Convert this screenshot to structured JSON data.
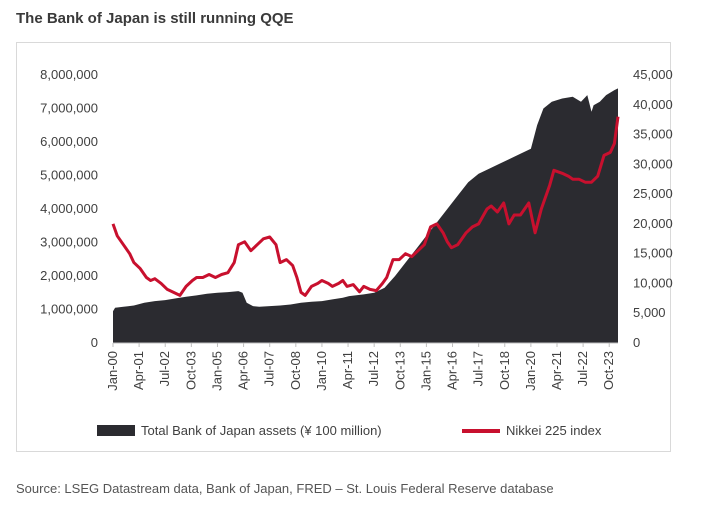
{
  "title": "The Bank of Japan is still running QQE",
  "source": "Source: LSEG Datastream data, Bank of Japan, FRED – St. Louis Federal Reserve database",
  "colors": {
    "assets": "#2b2b30",
    "nikkei": "#c8102e",
    "grid": "#d9d9d9"
  },
  "chart_data": {
    "type": "area",
    "x_range": [
      2000.0,
      2024.17
    ],
    "x_tick_labels": [
      "Jan-00",
      "Apr-01",
      "Jul-02",
      "Oct-03",
      "Jan-05",
      "Apr-06",
      "Jul-07",
      "Oct-08",
      "Jan-10",
      "Apr-11",
      "Jul-12",
      "Oct-13",
      "Jan-15",
      "Apr-16",
      "Jul-17",
      "Oct-18",
      "Jan-20",
      "Apr-21",
      "Jul-22",
      "Oct-23"
    ],
    "x_tick_values": [
      2000.0,
      2001.25,
      2002.5,
      2003.75,
      2005.0,
      2006.25,
      2007.5,
      2008.75,
      2010.0,
      2011.25,
      2012.5,
      2013.75,
      2015.0,
      2016.25,
      2017.5,
      2018.75,
      2020.0,
      2021.25,
      2022.5,
      2023.75
    ],
    "y_left": {
      "range": [
        0,
        8000000
      ],
      "tick_values": [
        0,
        1000000,
        2000000,
        3000000,
        4000000,
        5000000,
        6000000,
        7000000,
        8000000
      ],
      "tick_labels": [
        "0",
        "1,000,000",
        "2,000,000",
        "3,000,000",
        "4,000,000",
        "5,000,000",
        "6,000,000",
        "7,000,000",
        "8,000,000"
      ]
    },
    "y_right": {
      "range": [
        0,
        45000
      ],
      "tick_values": [
        0,
        5000,
        10000,
        15000,
        20000,
        25000,
        30000,
        35000,
        40000,
        45000
      ],
      "tick_labels": [
        "0",
        "5,000",
        "10,000",
        "15,000",
        "20,000",
        "25,000",
        "30,000",
        "35,000",
        "40,000",
        "45,000"
      ]
    },
    "grid": false,
    "legend_position": "bottom",
    "series": [
      {
        "name": "Total Bank of Japan assets (¥ 100 million)",
        "type": "area",
        "axis": "left",
        "x": [
          2000.0,
          2000.1,
          2000.5,
          2001.0,
          2001.5,
          2002.0,
          2002.5,
          2003.0,
          2003.5,
          2004.0,
          2004.5,
          2005.0,
          2005.5,
          2006.0,
          2006.2,
          2006.4,
          2006.7,
          2007.0,
          2007.5,
          2008.0,
          2008.5,
          2009.0,
          2009.5,
          2010.0,
          2010.5,
          2011.0,
          2011.3,
          2011.6,
          2012.0,
          2012.5,
          2013.0,
          2013.5,
          2014.0,
          2014.5,
          2015.0,
          2015.5,
          2016.0,
          2016.5,
          2017.0,
          2017.5,
          2018.0,
          2018.5,
          2019.0,
          2019.5,
          2020.0,
          2020.3,
          2020.6,
          2021.0,
          2021.5,
          2022.0,
          2022.4,
          2022.7,
          2022.9,
          2023.0,
          2023.3,
          2023.6,
          2024.0,
          2024.17
        ],
        "values": [
          950000,
          1050000,
          1080000,
          1120000,
          1200000,
          1250000,
          1280000,
          1330000,
          1380000,
          1420000,
          1470000,
          1500000,
          1520000,
          1550000,
          1500000,
          1200000,
          1100000,
          1080000,
          1100000,
          1120000,
          1150000,
          1200000,
          1230000,
          1250000,
          1300000,
          1350000,
          1400000,
          1420000,
          1450000,
          1500000,
          1650000,
          2000000,
          2400000,
          2800000,
          3200000,
          3600000,
          4000000,
          4400000,
          4800000,
          5050000,
          5200000,
          5350000,
          5500000,
          5650000,
          5800000,
          6500000,
          7000000,
          7200000,
          7300000,
          7350000,
          7200000,
          7400000,
          6900000,
          7100000,
          7200000,
          7400000,
          7550000,
          7600000
        ]
      },
      {
        "name": "Nikkei 225 index",
        "type": "line",
        "axis": "right",
        "x": [
          2000.0,
          2000.2,
          2000.5,
          2000.8,
          2001.0,
          2001.3,
          2001.6,
          2001.8,
          2002.0,
          2002.3,
          2002.6,
          2002.9,
          2003.2,
          2003.5,
          2003.8,
          2004.0,
          2004.3,
          2004.6,
          2004.9,
          2005.2,
          2005.5,
          2005.8,
          2006.0,
          2006.3,
          2006.6,
          2006.9,
          2007.2,
          2007.5,
          2007.8,
          2008.0,
          2008.3,
          2008.6,
          2008.8,
          2009.0,
          2009.2,
          2009.5,
          2009.8,
          2010.0,
          2010.3,
          2010.5,
          2010.8,
          2011.0,
          2011.2,
          2011.5,
          2011.8,
          2012.0,
          2012.3,
          2012.6,
          2012.9,
          2013.1,
          2013.4,
          2013.7,
          2014.0,
          2014.3,
          2014.6,
          2014.9,
          2015.2,
          2015.5,
          2015.8,
          2016.0,
          2016.2,
          2016.5,
          2016.9,
          2017.2,
          2017.5,
          2017.9,
          2018.1,
          2018.4,
          2018.7,
          2018.95,
          2019.2,
          2019.5,
          2019.9,
          2020.2,
          2020.5,
          2020.9,
          2021.1,
          2021.5,
          2021.8,
          2022.0,
          2022.3,
          2022.6,
          2022.9,
          2023.2,
          2023.5,
          2023.8,
          2024.0,
          2024.17
        ],
        "values": [
          20000,
          18000,
          16500,
          15000,
          13500,
          12500,
          11000,
          10500,
          10800,
          10000,
          9000,
          8500,
          8000,
          9500,
          10500,
          11000,
          11000,
          11500,
          11000,
          11500,
          11800,
          13500,
          16500,
          17000,
          15500,
          16500,
          17500,
          17800,
          16500,
          13500,
          14000,
          13000,
          11000,
          8500,
          8000,
          9500,
          10000,
          10500,
          10000,
          9500,
          10000,
          10500,
          9500,
          9800,
          8600,
          9500,
          9000,
          8800,
          10000,
          11000,
          14000,
          14000,
          15000,
          14500,
          15500,
          16500,
          19500,
          20000,
          18500,
          17000,
          16000,
          16500,
          18500,
          19500,
          20000,
          22500,
          23000,
          22000,
          23500,
          20000,
          21500,
          21500,
          23500,
          18500,
          22500,
          26500,
          29000,
          28500,
          28000,
          27500,
          27500,
          27000,
          27000,
          28000,
          31500,
          32000,
          33500,
          38000
        ]
      }
    ]
  }
}
